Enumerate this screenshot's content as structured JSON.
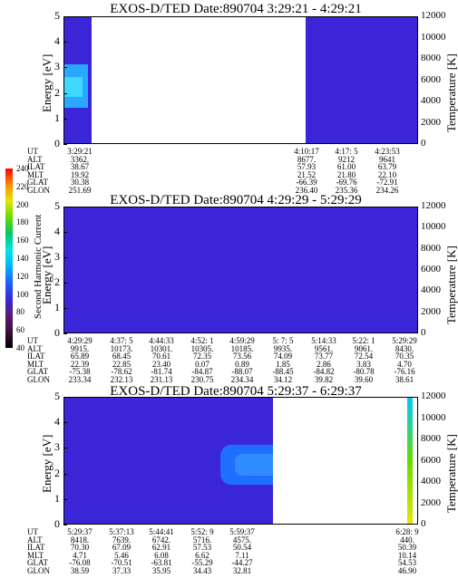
{
  "chart_data": [
    {
      "type": "heatmap",
      "title": "EXOS-D/TED   Date:890704  3:29:21 - 4:29:21",
      "ylabel": "Energy [eV]",
      "y2label": "Temperature [K]",
      "ylim": [
        0,
        5
      ],
      "y2lim": [
        0,
        12000
      ],
      "yticks": [
        "0",
        "1",
        "2",
        "3",
        "4",
        "5"
      ],
      "y2ticks": [
        "0",
        "2000",
        "4000",
        "6000",
        "8000",
        "10000",
        "12000"
      ],
      "row_labels": [
        "UT",
        "ALT",
        "ILAT",
        "MLT",
        "GLAT",
        "GLON"
      ],
      "columns": [
        {
          "values": [
            "3:29:21",
            "3362.",
            "38.67",
            "19.92",
            "30.38",
            "251.69"
          ]
        },
        {
          "values": [
            "4:10:17",
            "8677.",
            "57.93",
            "21.52",
            "-66.39",
            "236.40"
          ]
        },
        {
          "values": [
            "4:17: 5",
            "9212",
            "61.00",
            "21.80",
            "-69.76",
            "235.36"
          ]
        },
        {
          "values": [
            "4:23:53",
            "9641",
            "63.79",
            "22.10",
            "-72.91",
            "234.26"
          ]
        }
      ]
    },
    {
      "type": "heatmap",
      "title": "EXOS-D/TED   Date:890704  4:29:29 - 5:29:29",
      "ylabel": "Energy [eV]",
      "y2label": "Temperature [K]",
      "ylim": [
        0,
        5
      ],
      "y2lim": [
        0,
        12000
      ],
      "yticks": [
        "0",
        "1",
        "2",
        "3",
        "4",
        "5"
      ],
      "y2ticks": [
        "0",
        "2000",
        "4000",
        "6000",
        "8000",
        "10000",
        "12000"
      ],
      "row_labels": [
        "UT",
        "ALT",
        "ILAT",
        "MLT",
        "GLAT",
        "GLON"
      ],
      "columns": [
        {
          "values": [
            "4:29:29",
            "9915.",
            "65.89",
            "22.39",
            "-75.38",
            "233.34"
          ]
        },
        {
          "values": [
            "4:37: 5",
            "10173.",
            "68.45",
            "22.85",
            "-78.62",
            "232.13"
          ]
        },
        {
          "values": [
            "4:44:33",
            "10301.",
            "70.61",
            "23.40",
            "-81.74",
            "231.13"
          ]
        },
        {
          "values": [
            "4:52: 1",
            "10305.",
            "72.35",
            "0.07",
            "-84.87",
            "230.75"
          ]
        },
        {
          "values": [
            "4:59:29",
            "10185.",
            "73.56",
            "0.89",
            "-88.07",
            "234.34"
          ]
        },
        {
          "values": [
            "5: 7: 5",
            "9935.",
            "74.09",
            "1.85",
            "-88.45",
            "34.12"
          ]
        },
        {
          "values": [
            "5:14:33",
            "9561.",
            "73.77",
            "2.86",
            "-84.82",
            "39.82"
          ]
        },
        {
          "values": [
            "5:22: 1",
            "9061.",
            "72.54",
            "3.83",
            "-80.78",
            "39.60"
          ]
        },
        {
          "values": [
            "5:29:29",
            "8430.",
            "70.35",
            "4.70",
            "-76.16",
            "38.61"
          ]
        }
      ]
    },
    {
      "type": "heatmap",
      "title": "EXOS-D/TED   Date:890704  5:29:37 - 6:29:37",
      "ylabel": "Energy [eV]",
      "y2label": "Temperature [K]",
      "ylim": [
        0,
        5
      ],
      "y2lim": [
        0,
        12000
      ],
      "yticks": [
        "0",
        "1",
        "2",
        "3",
        "4",
        "5"
      ],
      "y2ticks": [
        "0",
        "2000",
        "4000",
        "6000",
        "8000",
        "10000",
        "12000"
      ],
      "row_labels": [
        "UT",
        "ALT",
        "ILAT",
        "MLT",
        "GLAT",
        "GLON"
      ],
      "columns": [
        {
          "values": [
            "5:29:37",
            "8418.",
            "70.30",
            "4.71",
            "-76.08",
            "38.59"
          ]
        },
        {
          "values": [
            "5:37:13",
            "7639.",
            "67.09",
            "5.46",
            "-70.51",
            "37.33"
          ]
        },
        {
          "values": [
            "5:44:41",
            "6742.",
            "62.91",
            "6.08",
            "-63.81",
            "35.95"
          ]
        },
        {
          "values": [
            "5:52: 9",
            "5716.",
            "57.53",
            "6.62",
            "-55.29",
            "34.43"
          ]
        },
        {
          "values": [
            "5:59:37",
            "4575.",
            "50.54",
            "7.11",
            "-44.27",
            "32.81"
          ]
        },
        {
          "values": [
            "6:28: 9",
            "440.",
            "50.39",
            "10.14",
            "54.53",
            "46.90"
          ]
        }
      ]
    }
  ],
  "colorbar": {
    "title": "Second Harmonic Current",
    "ticks": [
      "40",
      "60",
      "80",
      "100",
      "120",
      "140",
      "160",
      "180",
      "200",
      "220",
      "240"
    ],
    "colors": [
      "#000000",
      "#3a0f3a",
      "#5a1a7a",
      "#3a26d6",
      "#1f5fff",
      "#00b4ff",
      "#00e6e6",
      "#00c864",
      "#64dc00",
      "#e6e600",
      "#ff8c00",
      "#ff0000"
    ]
  },
  "background_color": "#3a26d6"
}
